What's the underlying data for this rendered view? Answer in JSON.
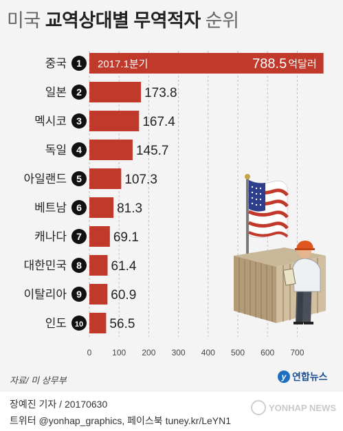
{
  "title": {
    "part1": "미국",
    "part2": "교역상대별 무역적자",
    "part3": "순위"
  },
  "chart_data": {
    "type": "bar",
    "orientation": "horizontal",
    "title": "미국 교역상대별 무역적자 순위",
    "period_label": "2017.1분기",
    "unit_suffix": "억달러",
    "categories": [
      "중국",
      "일본",
      "멕시코",
      "독일",
      "아일랜드",
      "베트남",
      "캐나다",
      "대한민국",
      "이탈리아",
      "인도"
    ],
    "ranks": [
      "1",
      "2",
      "3",
      "4",
      "5",
      "6",
      "7",
      "8",
      "9",
      "10"
    ],
    "values": [
      788.5,
      173.8,
      167.4,
      145.7,
      107.3,
      81.3,
      69.1,
      61.4,
      60.9,
      56.5
    ],
    "value_labels": [
      "788.5",
      "173.8",
      "167.4",
      "145.7",
      "107.3",
      "81.3",
      "69.1",
      "61.4",
      "60.9",
      "56.5"
    ],
    "xlim": [
      0,
      770
    ],
    "xticks": [
      0,
      100,
      200,
      300,
      400,
      500,
      600,
      700
    ],
    "grid": true,
    "colors": {
      "bar": "#c0392b",
      "rank_badge": "#111111",
      "grid": "#bdbdbd"
    }
  },
  "source": "자료/ 미 상무부",
  "logo": {
    "mark": "y",
    "text": "연합뉴스"
  },
  "footer": {
    "line1": "장예진 기자 / 20170630",
    "line2": "트위터 @yonhap_graphics, 페이스북 tuney.kr/LeYN1"
  },
  "watermark": "YONHAP NEWS",
  "illustration": "flag-container-worker"
}
